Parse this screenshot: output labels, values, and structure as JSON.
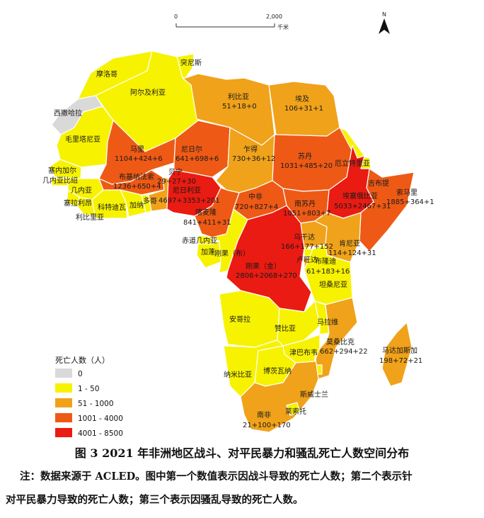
{
  "colors": {
    "c0": "#d9d9d9",
    "c1": "#f7f200",
    "c2": "#f0a21a",
    "c3": "#ee5a15",
    "c4": "#ea1b12"
  },
  "scale": {
    "start": "0",
    "end": "2,000",
    "unit": "千米"
  },
  "north": "N",
  "legend": {
    "title": "死亡人数（人）",
    "items": [
      {
        "label": "0",
        "color": "#d9d9d9"
      },
      {
        "label": "1 - 50",
        "color": "#f7f200"
      },
      {
        "label": "51 - 1000",
        "color": "#f0a21a"
      },
      {
        "label": "1001 - 4000",
        "color": "#ee5a15"
      },
      {
        "label": "4001 - 8500",
        "color": "#ea1b12"
      }
    ]
  },
  "countries": {
    "tunisia": {
      "name": "突尼斯"
    },
    "morocco": {
      "name": "摩洛哥"
    },
    "algeria": {
      "name": "阿尔及利亚"
    },
    "libya": {
      "name": "利比亚",
      "value": "51+18+0"
    },
    "egypt": {
      "name": "埃及",
      "value": "106+31+1"
    },
    "w_sahara": {
      "name": "西撒哈拉"
    },
    "mauritania": {
      "name": "毛里塔尼亚"
    },
    "mali": {
      "name": "马里",
      "value": "1104+424+6"
    },
    "niger": {
      "name": "尼日尔",
      "value": "641+698+6"
    },
    "chad": {
      "name": "乍得",
      "value": "730+36+12"
    },
    "sudan": {
      "name": "苏丹",
      "value": "1031+485+20"
    },
    "eritrea": {
      "name": "厄立特里亚"
    },
    "djibouti": {
      "name": "吉布提"
    },
    "senegal": {
      "name": "塞内加尔"
    },
    "gbissau": {
      "name": "几内亚比绍"
    },
    "guinea": {
      "name": "几内亚"
    },
    "sierra": {
      "name": "塞拉利昂"
    },
    "liberia": {
      "name": "利比里亚"
    },
    "ivory": {
      "name": "科特迪瓦"
    },
    "burkina": {
      "name": "布基纳法索",
      "value": "1236+650+4"
    },
    "ghana": {
      "name": "加纳"
    },
    "togo": {
      "name": "多哥"
    },
    "benin": {
      "name": "贝宁",
      "value": "29+27+30"
    },
    "nigeria": {
      "name": "尼日利亚",
      "value": "4697+3353+201"
    },
    "cameroon": {
      "name": "喀麦隆",
      "value": "841+411+31"
    },
    "car": {
      "name": "中非",
      "value": "720+827+4"
    },
    "ssudan": {
      "name": "南苏丹",
      "value": "1051+803+7"
    },
    "ethiopia": {
      "name": "埃塞俄比亚",
      "value": "5033+2467+31"
    },
    "somalia": {
      "name": "索马里",
      "value": "1885+364+1"
    },
    "eqguinea": {
      "name": "赤道几内亚"
    },
    "gabon": {
      "name": "加蓬"
    },
    "congo": {
      "name": "刚果（布）"
    },
    "drc": {
      "name": "刚果（金）",
      "value": "2806+2068+270"
    },
    "uganda": {
      "name": "乌干达",
      "value": "166+177+152"
    },
    "kenya": {
      "name": "肯尼亚",
      "value": "114+124+31"
    },
    "rwanda": {
      "name": "卢旺达"
    },
    "burundi": {
      "name": "布隆迪",
      "value": "61+183+16"
    },
    "tanzania": {
      "name": "坦桑尼亚"
    },
    "angola": {
      "name": "安哥拉"
    },
    "zambia": {
      "name": "赞比亚"
    },
    "malawi": {
      "name": "马拉维"
    },
    "mozambique": {
      "name": "莫桑比克",
      "value": "662+294+22"
    },
    "madagascar": {
      "name": "马达加斯加",
      "value": "198+72+21"
    },
    "zimbabwe": {
      "name": "津巴布韦"
    },
    "namibia": {
      "name": "纳米比亚"
    },
    "botswana": {
      "name": "博茨瓦纳"
    },
    "eswatini": {
      "name": "斯威士兰"
    },
    "lesotho": {
      "name": "莱索托"
    },
    "safrica": {
      "name": "南非",
      "value": "21+100+170"
    }
  },
  "caption": "图 3 2021 年非洲地区战斗、对平民暴力和骚乱死亡人数空间分布",
  "note_line1": "注：数据来源于 ACLED。图中第一个数值表示因战斗导致的死亡人数；第二个表示针",
  "note_line2": "对平民暴力导致的死亡人数；第三个表示因骚乱导致的死亡人数。"
}
